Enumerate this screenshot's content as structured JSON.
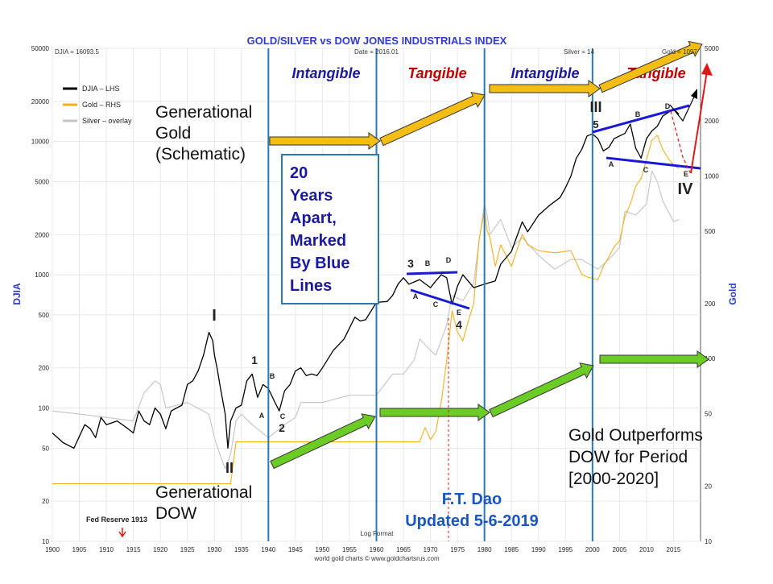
{
  "chart_data": {
    "type": "line",
    "title": "GOLD/SILVER vs DOW JONES INDUSTRIALS INDEX",
    "header_left": "DJIA = 16093.5",
    "header_mid": "Date = 2016.01",
    "header_silver": "Silver = 14",
    "header_gold": "Gold = 1097",
    "ylabel_left": "DJIA",
    "ylabel_right": "Gold",
    "y_scale": "log",
    "ylim_left": [
      10,
      50000
    ],
    "ylim_right": [
      10,
      5000
    ],
    "xlim": [
      1900,
      2020
    ],
    "x_ticks": [
      "1900",
      "1905",
      "1910",
      "1915",
      "1920",
      "1925",
      "1930",
      "1935",
      "1940",
      "1945",
      "1950",
      "1955",
      "1960",
      "1965",
      "1970",
      "1975",
      "1980",
      "1985",
      "1990",
      "1995",
      "2000",
      "2005",
      "2010",
      "2015"
    ],
    "y_ticks_left": [
      "10",
      "20",
      "50",
      "100",
      "200",
      "500",
      "1000",
      "2000",
      "5000",
      "10000",
      "20000",
      "50000"
    ],
    "y_ticks_right": [
      "10",
      "20",
      "50",
      "100",
      "200",
      "500",
      "1000",
      "2000",
      "5000"
    ],
    "grid": true,
    "legend": [
      {
        "name": "DJIA – LHS",
        "color": "#000000"
      },
      {
        "name": "Gold – RHS",
        "color": "#f2b01e"
      },
      {
        "name": "Silver – overlay",
        "color": "#c4c4c4"
      }
    ],
    "legend_position": "top-left",
    "footer_center": "Log Format",
    "footer_credit": "world gold charts © www.goldchartsrus.com",
    "series": [
      {
        "name": "DJIA – LHS",
        "axis": "left",
        "color": "#000000",
        "x": [
          1900,
          1902,
          1904,
          1906,
          1907,
          1908,
          1909,
          1910,
          1912,
          1914,
          1915,
          1916,
          1917,
          1918,
          1919,
          1920,
          1921,
          1922,
          1923,
          1924,
          1925,
          1926,
          1927,
          1928,
          1929,
          1929.7,
          1930,
          1930.5,
          1931,
          1932,
          1932.5,
          1933,
          1934,
          1935,
          1936,
          1937,
          1938,
          1939,
          1940,
          1941,
          1942,
          1943,
          1944,
          1945,
          1946,
          1947,
          1948,
          1949,
          1950,
          1952,
          1954,
          1956,
          1957,
          1958,
          1960,
          1962,
          1963,
          1964,
          1965,
          1966,
          1968,
          1970,
          1971,
          1972,
          1973,
          1974,
          1975,
          1976,
          1978,
          1980,
          1982,
          1983,
          1985,
          1987,
          1988,
          1990,
          1992,
          1994,
          1995,
          1996,
          1997,
          1998,
          1999,
          2000,
          2001,
          2002,
          2003,
          2004,
          2006,
          2007,
          2008,
          2009,
          2010,
          2011,
          2012,
          2013,
          2014,
          2015,
          2016
        ],
        "y": [
          65,
          55,
          50,
          75,
          70,
          60,
          85,
          75,
          80,
          70,
          65,
          95,
          80,
          75,
          100,
          90,
          70,
          95,
          100,
          105,
          150,
          160,
          190,
          250,
          370,
          320,
          250,
          200,
          150,
          90,
          50,
          80,
          100,
          105,
          160,
          180,
          120,
          150,
          140,
          115,
          95,
          135,
          150,
          190,
          200,
          175,
          180,
          175,
          200,
          270,
          330,
          480,
          450,
          460,
          620,
          630,
          700,
          850,
          950,
          850,
          920,
          800,
          900,
          1000,
          950,
          600,
          820,
          1000,
          800,
          850,
          900,
          1200,
          1500,
          2500,
          2100,
          2800,
          3300,
          3800,
          4500,
          5500,
          7500,
          8700,
          11000,
          11400,
          10500,
          8500,
          9000,
          10500,
          11500,
          13500,
          8900,
          7500,
          10500,
          12000,
          13000,
          15500,
          16500,
          17500,
          16000
        ]
      },
      {
        "name": "Gold – RHS",
        "axis": "right",
        "color": "#f2b01e",
        "x": [
          1900,
          1933,
          1934,
          1945,
          1960,
          1968,
          1969,
          1970,
          1971,
          1972,
          1973,
          1974,
          1975,
          1976,
          1977,
          1978,
          1979,
          1980,
          1980.5,
          1981,
          1982,
          1983,
          1985,
          1987,
          1988,
          1990,
          1993,
          1996,
          1998,
          1999,
          2001,
          2002,
          2003,
          2004,
          2005,
          2006,
          2007,
          2008,
          2009,
          2010,
          2011,
          2012,
          2013,
          2014,
          2015,
          2016
        ],
        "y": [
          20.67,
          20.67,
          35,
          35,
          35,
          35,
          42,
          36,
          40,
          58,
          97,
          183,
          140,
          125,
          160,
          200,
          450,
          650,
          500,
          460,
          320,
          420,
          320,
          480,
          420,
          390,
          380,
          390,
          290,
          280,
          270,
          320,
          360,
          410,
          440,
          600,
          700,
          880,
          970,
          1230,
          1570,
          1670,
          1400,
          1250,
          1150,
          1100
        ]
      },
      {
        "name": "Silver – overlay",
        "axis": "left",
        "color": "#c4c4c4",
        "x": [
          1900,
          1905,
          1910,
          1915,
          1917,
          1919,
          1920,
          1921,
          1925,
          1929,
          1930,
          1931,
          1932,
          1933,
          1934,
          1935,
          1937,
          1940,
          1943,
          1945,
          1946,
          1950,
          1955,
          1960,
          1963,
          1965,
          1967,
          1968,
          1970,
          1971,
          1973,
          1974,
          1976,
          1978,
          1979,
          1980,
          1980.5,
          1981,
          1983,
          1985,
          1987,
          1990,
          1993,
          1996,
          1998,
          2001,
          2003,
          2005,
          2006,
          2008,
          2010,
          2011,
          2012,
          2013,
          2014,
          2015,
          2016
        ],
        "y": [
          95,
          90,
          85,
          80,
          130,
          160,
          150,
          100,
          110,
          90,
          60,
          45,
          35,
          45,
          80,
          90,
          75,
          60,
          75,
          85,
          110,
          110,
          125,
          125,
          180,
          180,
          230,
          330,
          270,
          250,
          420,
          700,
          640,
          870,
          1800,
          3400,
          2800,
          2000,
          2600,
          1600,
          1900,
          1400,
          1100,
          1300,
          1300,
          1100,
          1300,
          1600,
          3000,
          2800,
          3400,
          6000,
          5000,
          3600,
          3000,
          2500,
          2600
        ]
      }
    ]
  },
  "annotations": {
    "eras": [
      "Intangible",
      "Tangible",
      "Intangible",
      "Tangible"
    ],
    "generational_gold": [
      "Generational",
      "Gold",
      "(Schematic)"
    ],
    "generational_dow": [
      "Generational",
      "DOW"
    ],
    "box": [
      "20",
      "Years",
      "Apart,",
      "Marked",
      "By Blue",
      "Lines"
    ],
    "outperform": [
      "Gold Outperforms",
      "DOW for Period",
      "[2000-2020]"
    ],
    "author": [
      "F.T. Dao",
      "Updated 5-6-2019"
    ],
    "fed": "Fed Reserve 1913",
    "waves": [
      "I",
      "II",
      "III",
      "5",
      "IV",
      "1",
      "2",
      "3",
      "4",
      "A",
      "B",
      "C",
      "A",
      "B",
      "C",
      "D",
      "E",
      "A",
      "B",
      "C",
      "D",
      "E"
    ]
  },
  "colors": {
    "title": "#2e3ad0",
    "tangible": "#c00000",
    "intangible": "#1a1aa0",
    "gold_arrow": "#f4bd14",
    "dow_arrow": "#6ccc26",
    "divider": "#2a78b4",
    "trend": "#1a1ad6",
    "author": "#1b55c2",
    "red_arrow": "#e01818"
  }
}
